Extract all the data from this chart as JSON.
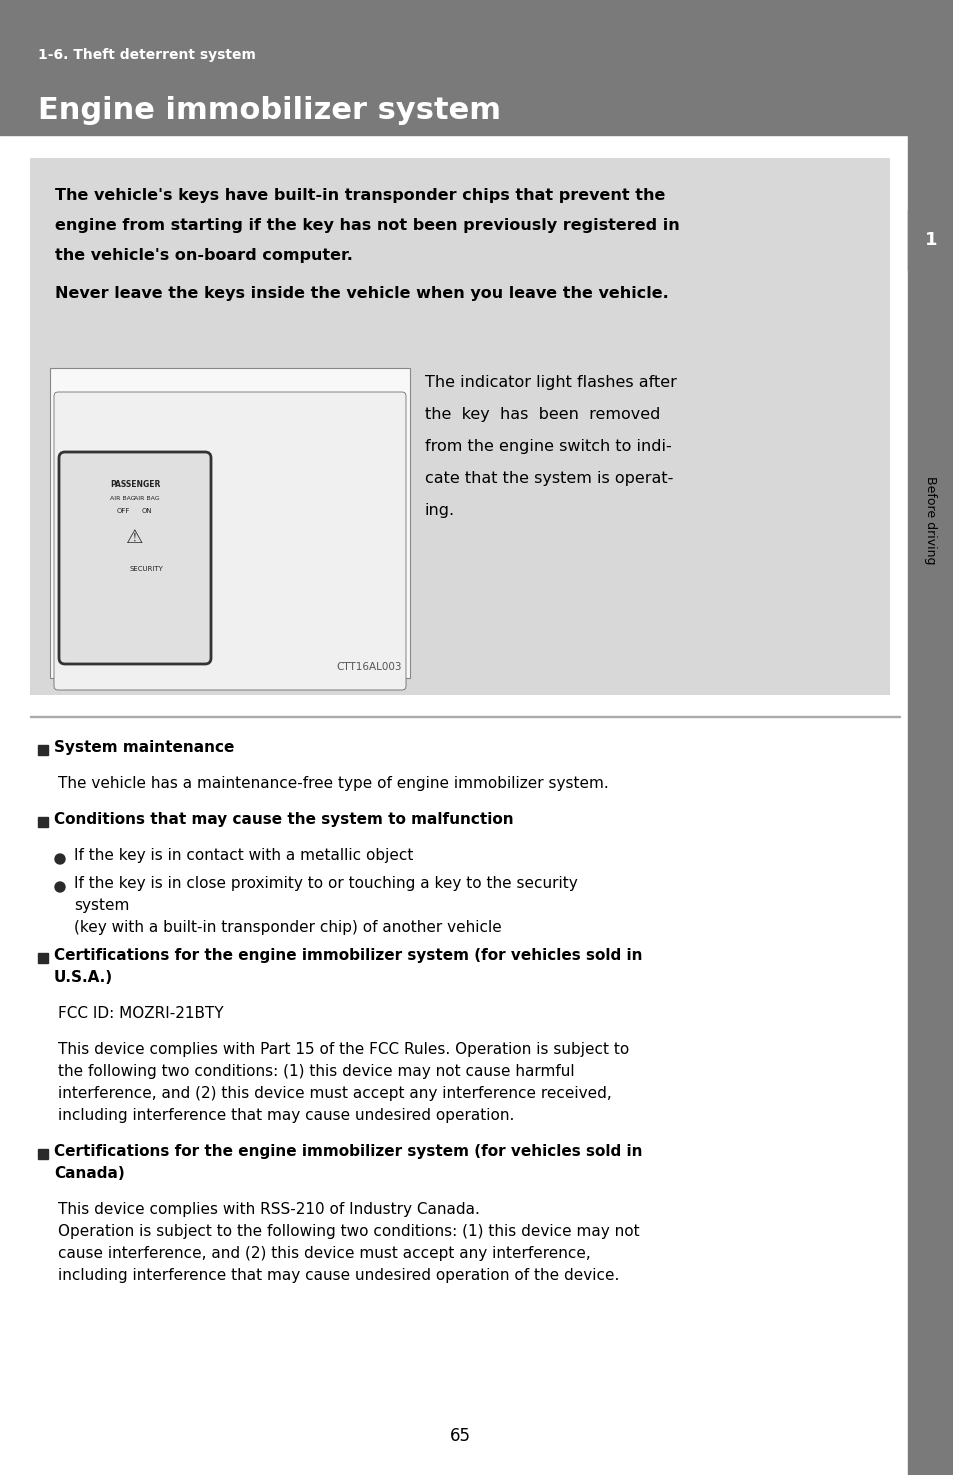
{
  "page_bg": "#ffffff",
  "header_bg": "#7a7a7a",
  "header_subtitle": "1-6. Theft deterrent system",
  "header_title": "Engine immobilizer system",
  "header_subtitle_color": "#ffffff",
  "header_title_color": "#ffffff",
  "info_box_bg": "#d8d8d8",
  "image_caption": "CTT16AL003",
  "indicator_lines": [
    "The indicator light flashes after",
    "the  key  has  been  removed",
    "from the engine switch to indi-",
    "cate that the system is operat-",
    "ing."
  ],
  "bold_lines": [
    "The vehicle's keys have built-in transponder chips that prevent the",
    "engine from starting if the key has not been previously registered in",
    "the vehicle's on-board computer.",
    "Never leave the keys inside the vehicle when you leave the vehicle."
  ],
  "sidebar_bg": "#7a7a7a",
  "sidebar_text": "Before driving",
  "sidebar_number": "1",
  "sidebar_number_bg": "#7a7a7a",
  "section_divider_color": "#aaaaaa",
  "sections": [
    {
      "type": "heading",
      "text": "System maintenance"
    },
    {
      "type": "body",
      "indent": false,
      "text": "The vehicle has a maintenance-free type of engine immobilizer system."
    },
    {
      "type": "heading",
      "text": "Conditions that may cause the system to malfunction"
    },
    {
      "type": "bullet",
      "text": "If the key is in contact with a metallic object"
    },
    {
      "type": "bullet",
      "text": "If the key is in close proximity to or touching a key to the security system\n(key with a built-in transponder chip) of another vehicle"
    },
    {
      "type": "heading",
      "text": "Certifications for the engine immobilizer system (for vehicles sold in\nU.S.A.)"
    },
    {
      "type": "body",
      "indent": true,
      "text": "FCC ID: MOZRI-21BTY"
    },
    {
      "type": "body",
      "indent": true,
      "text": "This device complies with Part 15 of the FCC Rules. Operation is subject to the following two conditions: (1) this device may not cause harmful interference, and (2) this device must accept any interference received, including interference that may cause undesired operation."
    },
    {
      "type": "heading",
      "text": "Certifications for the engine immobilizer system (for vehicles sold in\nCanada)"
    },
    {
      "type": "body",
      "indent": true,
      "text": "This device complies with RSS-210 of Industry Canada.\nOperation is subject to the following two conditions: (1) this device may not cause interference, and (2) this device must accept any interference, including interference that may cause undesired operation of the device."
    }
  ],
  "page_number": "65",
  "dpi": 100,
  "fig_width": 9.54,
  "fig_height": 14.75
}
